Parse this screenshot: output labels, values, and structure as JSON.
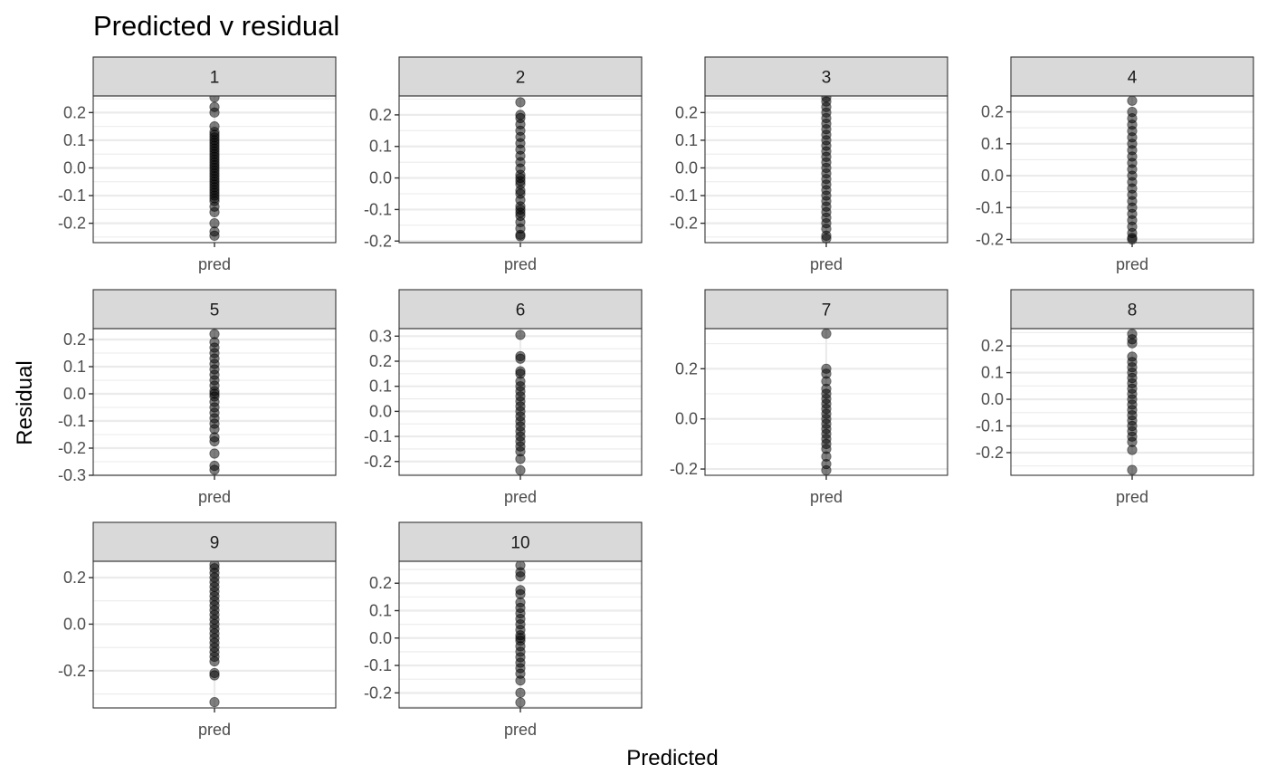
{
  "chart_data": {
    "type": "scatter",
    "title": "Predicted v residual",
    "xlabel": "Predicted",
    "ylabel": "Residual",
    "x_category": "pred",
    "grid": true,
    "panels": [
      {
        "label": "1",
        "ylim": [
          -0.27,
          0.26
        ],
        "yticks": [
          -0.2,
          -0.1,
          0.0,
          0.1,
          0.2
        ],
        "tick_labels": [
          "-0.2",
          "-0.1",
          "0.0",
          "0.1",
          "0.2"
        ],
        "values": [
          0.255,
          0.22,
          0.2,
          0.15,
          0.13,
          0.12,
          0.11,
          0.1,
          0.09,
          0.08,
          0.07,
          0.06,
          0.05,
          0.04,
          0.03,
          0.02,
          0.01,
          0.0,
          -0.01,
          -0.02,
          -0.03,
          -0.04,
          -0.05,
          -0.06,
          -0.07,
          -0.08,
          -0.09,
          -0.1,
          -0.11,
          -0.12,
          -0.14,
          -0.16,
          -0.2,
          -0.23,
          -0.245
        ]
      },
      {
        "label": "2",
        "ylim": [
          -0.205,
          0.26
        ],
        "yticks": [
          -0.2,
          -0.1,
          0.0,
          0.1,
          0.2
        ],
        "tick_labels": [
          "-0.2",
          "-0.1",
          "0.0",
          "0.1",
          "0.2"
        ],
        "values": [
          0.24,
          0.2,
          0.19,
          0.17,
          0.15,
          0.13,
          0.11,
          0.09,
          0.07,
          0.05,
          0.03,
          0.01,
          0.0,
          -0.01,
          -0.02,
          -0.04,
          -0.05,
          -0.07,
          -0.09,
          -0.1,
          -0.11,
          -0.12,
          -0.14,
          -0.16,
          -0.18,
          -0.185
        ]
      },
      {
        "label": "3",
        "ylim": [
          -0.27,
          0.26
        ],
        "yticks": [
          -0.2,
          -0.1,
          0.0,
          0.1,
          0.2
        ],
        "tick_labels": [
          "-0.2",
          "-0.1",
          "0.0",
          "0.1",
          "0.2"
        ],
        "values": [
          0.255,
          0.24,
          0.22,
          0.2,
          0.18,
          0.16,
          0.14,
          0.12,
          0.1,
          0.08,
          0.06,
          0.04,
          0.02,
          0.0,
          -0.02,
          -0.04,
          -0.06,
          -0.08,
          -0.1,
          -0.12,
          -0.14,
          -0.16,
          -0.18,
          -0.2,
          -0.22,
          -0.245,
          -0.255
        ]
      },
      {
        "label": "4",
        "ylim": [
          -0.21,
          0.25
        ],
        "yticks": [
          -0.2,
          -0.1,
          0.0,
          0.1,
          0.2
        ],
        "tick_labels": [
          "-0.2",
          "-0.1",
          "0.0",
          "0.1",
          "0.2"
        ],
        "values": [
          0.235,
          0.2,
          0.18,
          0.16,
          0.14,
          0.12,
          0.1,
          0.08,
          0.06,
          0.04,
          0.02,
          0.0,
          -0.02,
          -0.04,
          -0.06,
          -0.08,
          -0.1,
          -0.12,
          -0.14,
          -0.16,
          -0.18,
          -0.195,
          -0.2
        ]
      },
      {
        "label": "5",
        "ylim": [
          -0.3,
          0.24
        ],
        "yticks": [
          -0.3,
          -0.2,
          -0.1,
          0.0,
          0.1,
          0.2
        ],
        "tick_labels": [
          "-0.3",
          "-0.2",
          "-0.1",
          "0.0",
          "0.1",
          "0.2"
        ],
        "values": [
          0.22,
          0.19,
          0.17,
          0.15,
          0.13,
          0.11,
          0.09,
          0.07,
          0.05,
          0.03,
          0.01,
          0.0,
          -0.01,
          -0.03,
          -0.05,
          -0.07,
          -0.09,
          -0.11,
          -0.13,
          -0.16,
          -0.175,
          -0.22,
          -0.265,
          -0.28
        ]
      },
      {
        "label": "6",
        "ylim": [
          -0.255,
          0.33
        ],
        "yticks": [
          -0.2,
          -0.1,
          0.0,
          0.1,
          0.2,
          0.3
        ],
        "tick_labels": [
          "-0.2",
          "-0.1",
          "0.0",
          "0.1",
          "0.2",
          "0.3"
        ],
        "values": [
          0.305,
          0.22,
          0.21,
          0.16,
          0.15,
          0.12,
          0.1,
          0.08,
          0.06,
          0.04,
          0.02,
          0.0,
          -0.02,
          -0.04,
          -0.06,
          -0.08,
          -0.1,
          -0.12,
          -0.14,
          -0.16,
          -0.19,
          -0.235
        ]
      },
      {
        "label": "7",
        "ylim": [
          -0.225,
          0.36
        ],
        "yticks": [
          -0.2,
          0.0,
          0.2
        ],
        "tick_labels": [
          "-0.2",
          "0.0",
          "0.2"
        ],
        "values": [
          0.34,
          0.2,
          0.18,
          0.15,
          0.12,
          0.1,
          0.08,
          0.06,
          0.04,
          0.02,
          0.0,
          -0.02,
          -0.04,
          -0.06,
          -0.08,
          -0.1,
          -0.12,
          -0.15,
          -0.18,
          -0.205
        ]
      },
      {
        "label": "8",
        "ylim": [
          -0.285,
          0.265
        ],
        "yticks": [
          -0.2,
          -0.1,
          0.0,
          0.1,
          0.2
        ],
        "tick_labels": [
          "-0.2",
          "-0.1",
          "0.0",
          "0.1",
          "0.2"
        ],
        "values": [
          0.245,
          0.225,
          0.21,
          0.16,
          0.14,
          0.12,
          0.1,
          0.08,
          0.06,
          0.04,
          0.02,
          0.0,
          -0.02,
          -0.04,
          -0.06,
          -0.08,
          -0.1,
          -0.12,
          -0.14,
          -0.16,
          -0.19,
          -0.265
        ]
      },
      {
        "label": "9",
        "ylim": [
          -0.36,
          0.27
        ],
        "yticks": [
          -0.2,
          0.0,
          0.2
        ],
        "tick_labels": [
          "-0.2",
          "0.0",
          "0.2"
        ],
        "values": [
          0.255,
          0.24,
          0.22,
          0.2,
          0.18,
          0.16,
          0.14,
          0.12,
          0.1,
          0.08,
          0.06,
          0.04,
          0.02,
          0.0,
          -0.02,
          -0.04,
          -0.06,
          -0.08,
          -0.1,
          -0.12,
          -0.14,
          -0.16,
          -0.21,
          -0.22,
          -0.335
        ]
      },
      {
        "label": "10",
        "ylim": [
          -0.255,
          0.28
        ],
        "yticks": [
          -0.2,
          -0.1,
          0.0,
          0.1,
          0.2
        ],
        "tick_labels": [
          "-0.2",
          "-0.1",
          "0.0",
          "0.1",
          "0.2"
        ],
        "values": [
          0.265,
          0.24,
          0.225,
          0.175,
          0.16,
          0.13,
          0.11,
          0.09,
          0.07,
          0.05,
          0.03,
          0.01,
          0.0,
          -0.01,
          -0.03,
          -0.05,
          -0.07,
          -0.09,
          -0.11,
          -0.13,
          -0.155,
          -0.2,
          -0.235
        ]
      }
    ]
  }
}
